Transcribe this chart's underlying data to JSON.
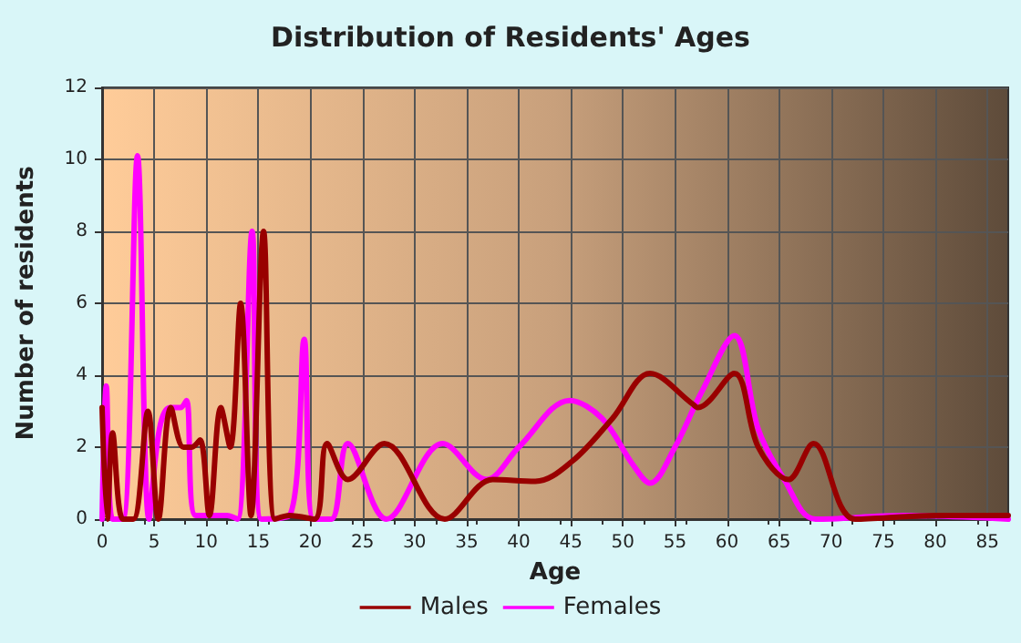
{
  "chart_data": {
    "type": "line",
    "title": "Distribution of Residents' Ages",
    "xlabel": "Age",
    "ylabel": "Number of residents",
    "xlim": [
      0,
      87
    ],
    "xticks": [
      0,
      5,
      10,
      15,
      20,
      25,
      30,
      35,
      40,
      45,
      50,
      55,
      60,
      65,
      70,
      75,
      80,
      85
    ],
    "ylim": [
      0,
      12
    ],
    "yticks": [
      0,
      2,
      4,
      6,
      8,
      10,
      12
    ],
    "grid": true,
    "legend": "bottom",
    "marker": "none",
    "line_style": "solid",
    "series": [
      {
        "name": "Males",
        "color": "#990000",
        "x": [
          0,
          0.5,
          1,
          2,
          3,
          4.4,
          5.4,
          6.6,
          7.8,
          8.6,
          9.4,
          10.3,
          11.4,
          12.3,
          13.3,
          14.3,
          15.5,
          16.6,
          18,
          20.4,
          21.6,
          23.6,
          27.1,
          32.9,
          37.5,
          41.6,
          45.1,
          49,
          52.6,
          56.7,
          57.2,
          60.7,
          63,
          65.9,
          68.3,
          72.3,
          80,
          87
        ],
        "values": [
          3.1,
          0,
          2.4,
          0,
          0,
          3,
          0,
          3.1,
          2,
          2,
          2.2,
          0.1,
          3.1,
          2,
          6,
          0.1,
          8,
          0,
          0.1,
          0,
          2.1,
          1.1,
          2.1,
          0,
          1.1,
          1.05,
          1.6,
          2.8,
          4.05,
          3.2,
          3.1,
          4.05,
          2,
          1.1,
          2.1,
          0,
          0.1,
          0.1
        ]
      },
      {
        "name": "Females",
        "color": "#ff00ff",
        "x": [
          0,
          0.4,
          1,
          2,
          3.4,
          4.5,
          5.5,
          6.5,
          7.5,
          8.1,
          9,
          12,
          13,
          14.4,
          15.3,
          18,
          19.4,
          20.3,
          22,
          23.6,
          27.3,
          32.7,
          36.9,
          40,
          44.9,
          48,
          51,
          52.6,
          55,
          57.5,
          60.7,
          63,
          65.5,
          68.5,
          77,
          87
        ],
        "values": [
          0,
          3.7,
          0,
          0,
          10.1,
          0,
          2.5,
          3.1,
          3.1,
          3.3,
          0.1,
          0.1,
          0,
          8,
          0,
          0.1,
          5,
          0,
          0,
          2.1,
          0,
          2.1,
          1.1,
          2,
          3.3,
          2.8,
          1.5,
          1,
          2,
          3.5,
          5.1,
          2.5,
          1.1,
          0,
          0.1,
          0
        ]
      }
    ]
  }
}
